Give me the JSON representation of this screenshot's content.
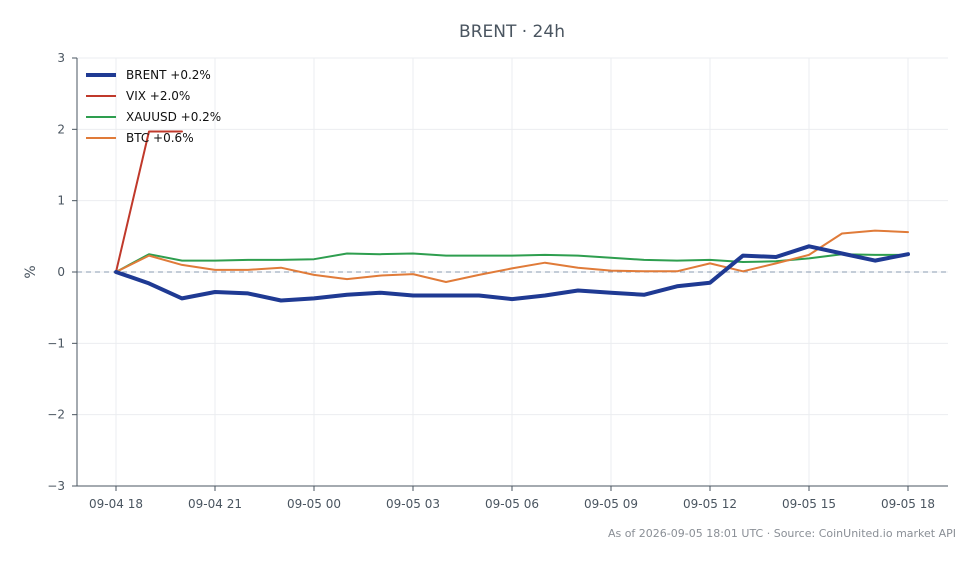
{
  "chart_data": {
    "type": "line",
    "title": "BRENT · 24h",
    "ylabel": "%",
    "xlabel": "",
    "ylim": [
      -3,
      3
    ],
    "yticks": [
      {
        "value": 3,
        "label": "3"
      },
      {
        "value": 2,
        "label": "2"
      },
      {
        "value": 1,
        "label": "1"
      },
      {
        "value": 0,
        "label": "0"
      },
      {
        "value": -1,
        "label": "−1"
      },
      {
        "value": -2,
        "label": "−2"
      },
      {
        "value": -3,
        "label": "−3"
      }
    ],
    "xticks": [
      {
        "index": 0,
        "label": "09-04 18"
      },
      {
        "index": 3,
        "label": "09-04 21"
      },
      {
        "index": 6,
        "label": "09-05 00"
      },
      {
        "index": 9,
        "label": "09-05 03"
      },
      {
        "index": 12,
        "label": "09-05 06"
      },
      {
        "index": 15,
        "label": "09-05 09"
      },
      {
        "index": 18,
        "label": "09-05 12"
      },
      {
        "index": 21,
        "label": "09-05 15"
      },
      {
        "index": 24,
        "label": "09-05 18"
      }
    ],
    "x": [
      "09-04 18",
      "09-04 19",
      "09-04 20",
      "09-04 21",
      "09-04 22",
      "09-04 23",
      "09-05 00",
      "09-05 01",
      "09-05 02",
      "09-05 03",
      "09-05 04",
      "09-05 05",
      "09-05 06",
      "09-05 07",
      "09-05 08",
      "09-05 09",
      "09-05 10",
      "09-05 11",
      "09-05 12",
      "09-05 13",
      "09-05 14",
      "09-05 15",
      "09-05 16",
      "09-05 17",
      "09-05 18"
    ],
    "grid": true,
    "legend_position": "top-left",
    "zero_line": true,
    "series": [
      {
        "name": "BRENT +0.2%",
        "color": "#1f3a93",
        "width": 4,
        "values": [
          0,
          -0.16,
          -0.37,
          -0.28,
          -0.3,
          -0.4,
          -0.37,
          -0.32,
          -0.29,
          -0.33,
          -0.33,
          -0.33,
          -0.38,
          -0.33,
          -0.26,
          -0.29,
          -0.32,
          -0.2,
          -0.15,
          0.23,
          0.21,
          0.36,
          0.26,
          0.16,
          0.25
        ]
      },
      {
        "name": "VIX +2.0%",
        "color": "#c0392b",
        "width": 2,
        "values": [
          0,
          1.97,
          1.97,
          null,
          null,
          null,
          null,
          null,
          null,
          null,
          null,
          null,
          null,
          null,
          null,
          null,
          null,
          null,
          null,
          null,
          null,
          null,
          null,
          null,
          null
        ]
      },
      {
        "name": "XAUUSD +0.2%",
        "color": "#2e9e4f",
        "width": 2,
        "values": [
          0,
          0.25,
          0.16,
          0.16,
          0.17,
          0.17,
          0.18,
          0.26,
          0.25,
          0.26,
          0.23,
          0.23,
          0.23,
          0.24,
          0.23,
          0.2,
          0.17,
          0.16,
          0.17,
          0.14,
          0.15,
          0.19,
          0.25,
          0.24,
          0.24
        ]
      },
      {
        "name": "BTC +0.6%",
        "color": "#e07b39",
        "width": 2,
        "values": [
          0,
          0.23,
          0.1,
          0.03,
          0.03,
          0.06,
          -0.04,
          -0.1,
          -0.05,
          -0.03,
          -0.14,
          -0.04,
          0.05,
          0.13,
          0.06,
          0.02,
          0.01,
          0.01,
          0.12,
          0.01,
          0.12,
          0.24,
          0.54,
          0.58,
          0.56
        ]
      }
    ]
  },
  "footer": "As of 2026-09-05 18:01 UTC · Source: CoinUnited.io market API"
}
